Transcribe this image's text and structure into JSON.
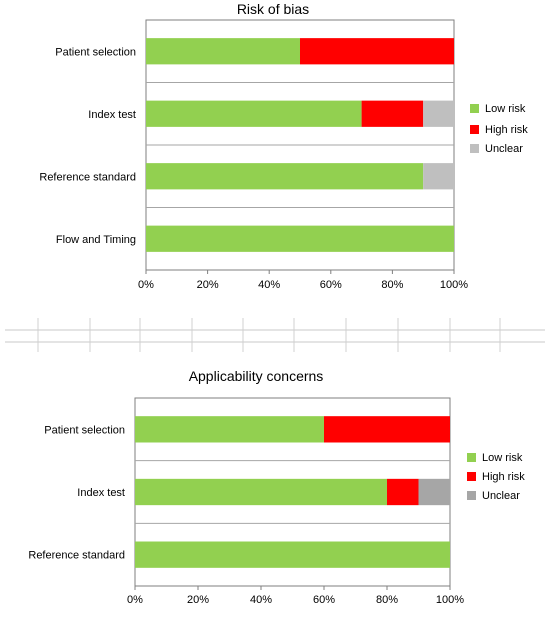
{
  "chart_data": [
    {
      "type": "bar",
      "orientation": "horizontal",
      "stacked": true,
      "title": "Risk of bias",
      "categories": [
        "Patient selection",
        "Index test",
        "Reference standard",
        "Flow and Timing"
      ],
      "series": [
        {
          "name": "Low risk",
          "color": "#92d050",
          "values": [
            50,
            70,
            90,
            100
          ]
        },
        {
          "name": "High risk",
          "color": "#ff0000",
          "values": [
            50,
            20,
            0,
            0
          ]
        },
        {
          "name": "Unclear",
          "color": "#bfbfbf",
          "values": [
            0,
            10,
            10,
            0
          ]
        }
      ],
      "xlim": [
        0,
        100
      ],
      "xticks": [
        "0%",
        "20%",
        "40%",
        "60%",
        "80%",
        "100%"
      ],
      "legend": "right"
    },
    {
      "type": "bar",
      "orientation": "horizontal",
      "stacked": true,
      "title": "Applicability concerns",
      "categories": [
        "Patient selection",
        "Index test",
        "Reference standard"
      ],
      "series": [
        {
          "name": "Low risk",
          "color": "#92d050",
          "values": [
            60,
            80,
            100
          ]
        },
        {
          "name": "High risk",
          "color": "#ff0000",
          "values": [
            40,
            10,
            0
          ]
        },
        {
          "name": "Unclear",
          "color": "#a6a6a6",
          "values": [
            0,
            10,
            0
          ]
        }
      ],
      "xlim": [
        0,
        100
      ],
      "xticks": [
        "0%",
        "20%",
        "40%",
        "60%",
        "80%",
        "100%"
      ],
      "legend": "right"
    }
  ]
}
